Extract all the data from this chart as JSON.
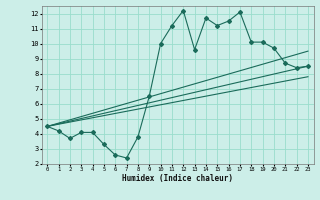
{
  "xlabel": "Humidex (Indice chaleur)",
  "background_color": "#cceee8",
  "grid_color": "#99ddcc",
  "line_color": "#1a6b5a",
  "xlim": [
    -0.5,
    23.5
  ],
  "ylim": [
    2,
    12.5
  ],
  "xticks": [
    0,
    1,
    2,
    3,
    4,
    5,
    6,
    7,
    8,
    9,
    10,
    11,
    12,
    13,
    14,
    15,
    16,
    17,
    18,
    19,
    20,
    21,
    22,
    23
  ],
  "yticks": [
    2,
    3,
    4,
    5,
    6,
    7,
    8,
    9,
    10,
    11,
    12
  ],
  "jagged_x": [
    0,
    1,
    2,
    3,
    4,
    5,
    6,
    7,
    8,
    9,
    10,
    11,
    12,
    13,
    14,
    15,
    16,
    17,
    18,
    19,
    20,
    21,
    22,
    23
  ],
  "jagged_y": [
    4.5,
    4.2,
    3.7,
    4.1,
    4.1,
    3.3,
    2.6,
    2.4,
    3.8,
    6.5,
    10.0,
    11.2,
    12.2,
    9.6,
    11.7,
    11.2,
    11.5,
    12.1,
    10.1,
    10.1,
    9.7,
    8.7,
    8.4,
    8.5
  ],
  "line1_x": [
    0,
    23
  ],
  "line1_y": [
    4.5,
    9.5
  ],
  "line2_x": [
    0,
    23
  ],
  "line2_y": [
    4.5,
    8.5
  ],
  "line3_x": [
    0,
    23
  ],
  "line3_y": [
    4.5,
    7.8
  ]
}
